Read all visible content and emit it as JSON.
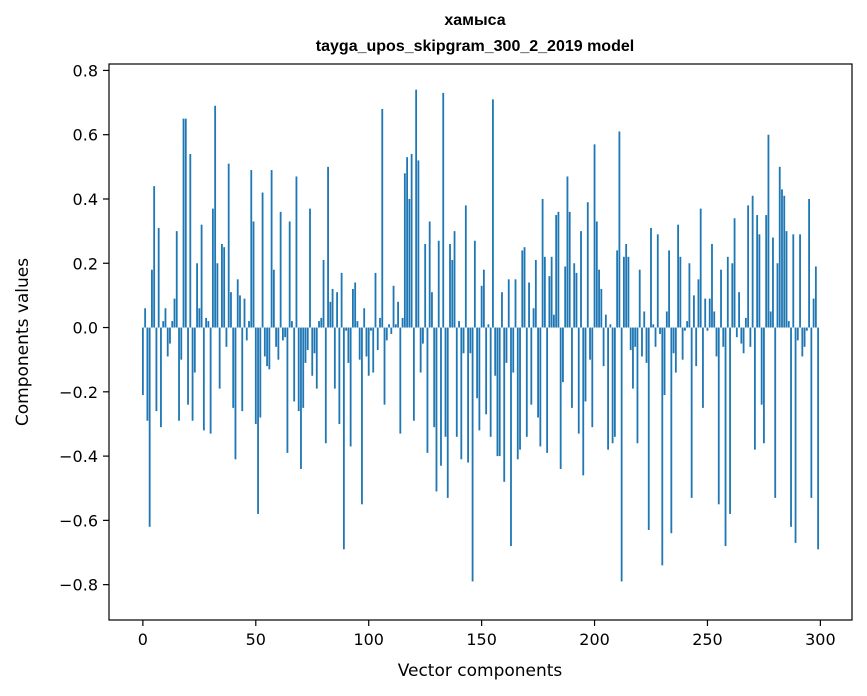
{
  "chart_data": {
    "type": "bar",
    "title": "хамыса",
    "subtitle": "tayga_upos_skipgram_300_2_2019 model",
    "xlabel": "Vector components",
    "ylabel": "Components values",
    "xlim": [
      -15,
      314
    ],
    "ylim": [
      -0.91,
      0.82
    ],
    "xticks": [
      0,
      50,
      100,
      150,
      200,
      250,
      300
    ],
    "yticks": [
      -0.8,
      -0.6,
      -0.4,
      -0.2,
      0.0,
      0.2,
      0.4,
      0.6,
      0.8
    ],
    "ytick_labels": [
      "−0.8",
      "−0.6",
      "−0.4",
      "−0.2",
      "0.0",
      "0.2",
      "0.4",
      "0.6",
      "0.8"
    ],
    "xtick_labels": [
      "0",
      "50",
      "100",
      "150",
      "200",
      "250",
      "300"
    ],
    "bar_color": "#1f77b4",
    "grid": false,
    "values": [
      -0.21,
      0.06,
      -0.29,
      -0.62,
      0.18,
      0.44,
      -0.26,
      0.31,
      -0.31,
      0.02,
      0.06,
      -0.09,
      -0.05,
      0.02,
      0.09,
      0.3,
      -0.29,
      -0.1,
      0.65,
      0.65,
      -0.24,
      0.54,
      -0.29,
      -0.14,
      0.2,
      0.06,
      0.32,
      -0.32,
      0.03,
      0.02,
      -0.33,
      0.37,
      0.69,
      0.2,
      -0.19,
      0.26,
      0.25,
      -0.06,
      0.51,
      0.11,
      -0.25,
      -0.41,
      0.15,
      0.1,
      -0.26,
      0.09,
      -0.04,
      0.02,
      0.49,
      0.33,
      -0.3,
      -0.58,
      -0.28,
      0.42,
      -0.09,
      -0.12,
      -0.13,
      0.49,
      0.18,
      -0.06,
      -0.1,
      0.36,
      -0.04,
      -0.03,
      -0.39,
      0.33,
      0.02,
      -0.23,
      0.47,
      -0.26,
      -0.44,
      -0.25,
      -0.11,
      -0.07,
      0.37,
      -0.15,
      -0.08,
      -0.19,
      0.02,
      0.03,
      0.21,
      -0.36,
      0.5,
      0.08,
      0.12,
      -0.19,
      0.11,
      -0.3,
      0.17,
      -0.69,
      -0.01,
      -0.11,
      -0.37,
      0.12,
      0.14,
      0.02,
      -0.1,
      -0.55,
      0.06,
      -0.09,
      -0.15,
      -0.01,
      -0.14,
      0.17,
      -0.07,
      0.03,
      0.68,
      -0.24,
      -0.04,
      0.01,
      -0.02,
      0.13,
      0.01,
      0.08,
      -0.33,
      0.03,
      0.48,
      0.53,
      0.4,
      0.54,
      -0.29,
      0.74,
      0.52,
      -0.14,
      -0.05,
      0.26,
      -0.39,
      0.33,
      0.11,
      -0.31,
      -0.51,
      0.27,
      -0.43,
      0.73,
      -0.34,
      -0.53,
      0.26,
      0.21,
      0.3,
      -0.34,
      0.02,
      -0.41,
      -0.08,
      0.38,
      -0.42,
      -0.08,
      -0.79,
      0.27,
      -0.22,
      -0.32,
      0.13,
      0.18,
      -0.27,
      0.01,
      -0.34,
      0.71,
      -0.15,
      -0.4,
      -0.4,
      0.11,
      -0.48,
      -0.11,
      0.15,
      -0.68,
      -0.14,
      0.15,
      -0.41,
      -0.38,
      0.24,
      0.25,
      -0.34,
      0.14,
      -0.24,
      0.06,
      0.21,
      -0.28,
      -0.37,
      0.4,
      0.22,
      -0.39,
      0.16,
      0.22,
      0.04,
      0.35,
      0.36,
      -0.44,
      -0.17,
      0.19,
      0.47,
      0.36,
      -0.25,
      0.2,
      0.17,
      -0.33,
      0.3,
      -0.46,
      -0.23,
      0.39,
      -0.1,
      -0.31,
      0.57,
      0.33,
      0.18,
      0.12,
      -0.12,
      0.04,
      -0.38,
      0.01,
      -0.36,
      -0.34,
      0.24,
      0.61,
      -0.79,
      0.22,
      0.26,
      0.22,
      -0.07,
      -0.19,
      -0.06,
      -0.36,
      0.18,
      -0.09,
      0.05,
      -0.11,
      -0.63,
      0.31,
      0.01,
      -0.06,
      0.29,
      -0.02,
      -0.74,
      -0.21,
      0.05,
      0.24,
      -0.64,
      -0.08,
      -0.14,
      0.32,
      0.22,
      -0.1,
      -0.01,
      0.02,
      0.2,
      -0.53,
      0.1,
      -0.12,
      0.15,
      0.37,
      -0.25,
      0.09,
      -0.01,
      0.09,
      0.26,
      0.05,
      -0.09,
      -0.55,
      0.18,
      -0.06,
      -0.68,
      0.22,
      -0.58,
      0.2,
      0.34,
      -0.03,
      0.11,
      -0.05,
      -0.08,
      0.03,
      0.38,
      -0.06,
      0.41,
      -0.38,
      0.35,
      0.29,
      -0.24,
      -0.36,
      0.35,
      0.6,
      0.05,
      0.28,
      -0.53,
      0.2,
      0.5,
      0.43,
      0.41,
      0.3,
      0.02,
      -0.62,
      0.29,
      -0.67,
      -0.04,
      0.29,
      -0.09,
      -0.06,
      -0.01,
      0.4,
      -0.53,
      0.09,
      0.19,
      -0.69
    ]
  }
}
